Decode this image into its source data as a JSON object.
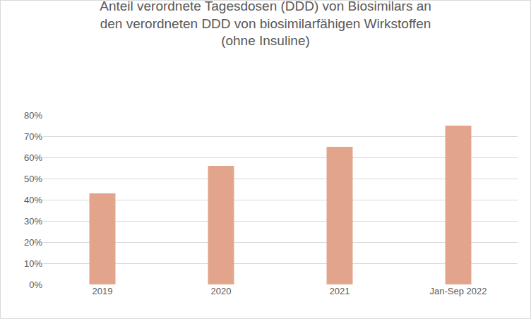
{
  "chart_data": {
    "type": "bar",
    "title": "Anteil verordnete Tagesdosen (DDD) von Biosimilars an\nden verordneten DDD von biosimilarfähigen Wirkstoffen\n(ohne Insuline)",
    "categories": [
      "2019",
      "2020",
      "2021",
      "Jan-Sep 2022"
    ],
    "values": [
      43,
      56,
      65,
      75
    ],
    "color": "#e2a58c",
    "ylim": [
      0,
      80
    ],
    "yticks": [
      {
        "value": 0,
        "label": "0%"
      },
      {
        "value": 10,
        "label": "10%"
      },
      {
        "value": 20,
        "label": "20%"
      },
      {
        "value": 30,
        "label": "30%"
      },
      {
        "value": 40,
        "label": "40%"
      },
      {
        "value": 50,
        "label": "50%"
      },
      {
        "value": 60,
        "label": "60%"
      },
      {
        "value": 70,
        "label": "70%"
      },
      {
        "value": 80,
        "label": "80%"
      }
    ],
    "grid": true
  }
}
